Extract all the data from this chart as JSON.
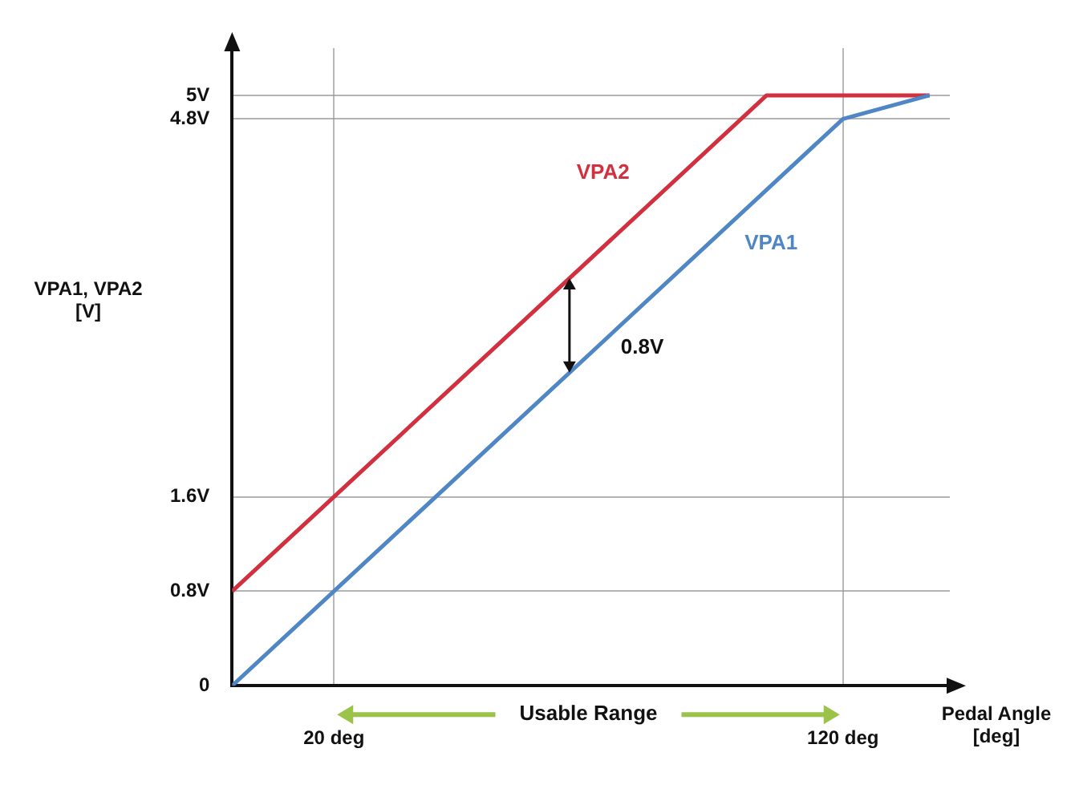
{
  "chart_data": {
    "type": "line",
    "xlabel": "Pedal Angle [deg]",
    "ylabel": "VPA1, VPA2 [V]",
    "xlim": [
      0,
      141
    ],
    "ylim": [
      0,
      5.4
    ],
    "xticks": [
      {
        "value": 20,
        "label": "20 deg"
      },
      {
        "value": 120,
        "label": "120 deg"
      }
    ],
    "yticks": [
      0,
      {
        "value": 0.8,
        "label": "0.8V"
      },
      {
        "value": 1.6,
        "label": "1.6V"
      },
      {
        "value": 4.8,
        "label": "4.8V"
      },
      {
        "value": 5,
        "label": "5V"
      }
    ],
    "grid": true,
    "legend": false,
    "series": [
      {
        "name": "VPA1",
        "color": "#4f86c6",
        "x": [
          0,
          20,
          120,
          137
        ],
        "values": [
          0,
          0.8,
          4.8,
          5
        ]
      },
      {
        "name": "VPA2",
        "color": "#d2303f",
        "x": [
          0,
          20,
          105,
          137
        ],
        "values": [
          0.8,
          1.6,
          5,
          5
        ]
      }
    ],
    "annotations": [
      "0.8V",
      "Usable Range"
    ]
  }
}
